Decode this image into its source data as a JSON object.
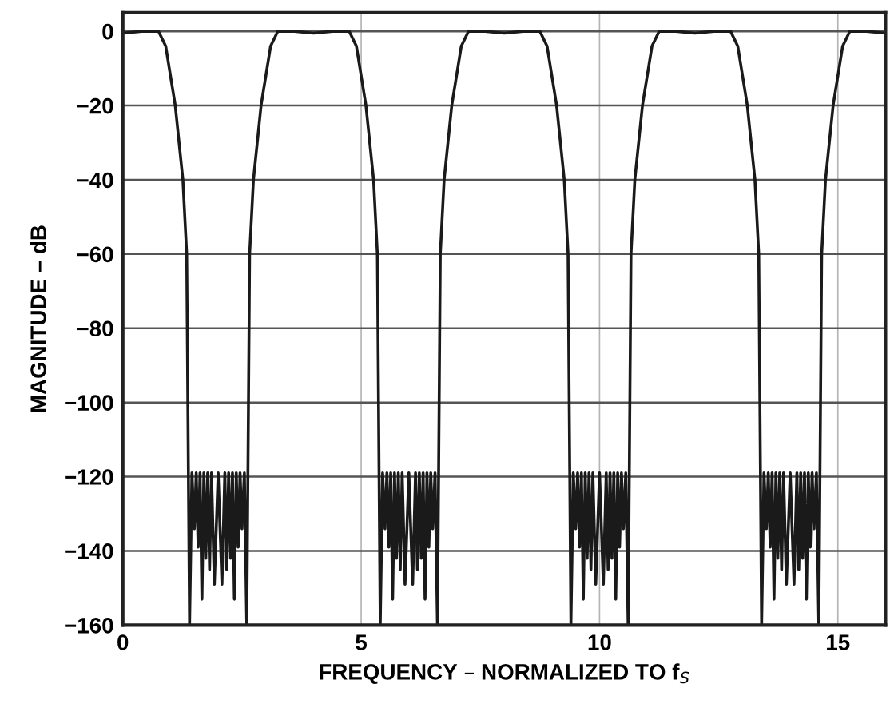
{
  "chart_data": {
    "type": "line",
    "xlabel": "FREQUENCY – NORMALIZED TO f$_{S}$",
    "ylabel": "MAGNITUDE – dB",
    "xlim": [
      0,
      16
    ],
    "ylim": [
      -160,
      5
    ],
    "xticks": [
      0,
      5,
      10,
      15
    ],
    "yticks": [
      0,
      {
        "value": -20,
        "label": "−20"
      },
      {
        "value": -40,
        "label": "−40"
      },
      {
        "value": -60,
        "label": "−60"
      },
      {
        "value": -80,
        "label": "−80"
      },
      {
        "value": -100,
        "label": "−100"
      },
      {
        "value": -120,
        "label": "−120"
      },
      {
        "value": -140,
        "label": "−140"
      },
      {
        "value": -160,
        "label": "−160"
      }
    ],
    "grid": true,
    "marker": "none",
    "line_style": "solid",
    "series": [
      {
        "color": "#1a1a1a",
        "x": [
          0,
          0.4,
          0.75,
          0.9,
          1.1,
          1.26,
          1.34,
          1.4,
          1.45,
          1.5,
          1.54,
          1.58,
          1.62,
          1.66,
          1.7,
          1.74,
          1.78,
          1.82,
          1.86,
          1.92,
          2,
          2.08,
          2.14,
          2.18,
          2.22,
          2.26,
          2.3,
          2.34,
          2.38,
          2.42,
          2.46,
          2.5,
          2.55,
          2.6,
          2.66,
          2.74,
          2.9,
          3.1,
          3.25,
          3.6,
          4,
          4.4,
          4.75,
          4.9,
          5.1,
          5.26,
          5.34,
          5.4,
          5.45,
          5.5,
          5.54,
          5.58,
          5.62,
          5.66,
          5.7,
          5.74,
          5.78,
          5.82,
          5.86,
          5.92,
          6,
          6.08,
          6.14,
          6.18,
          6.22,
          6.26,
          6.3,
          6.34,
          6.38,
          6.42,
          6.46,
          6.5,
          6.55,
          6.6,
          6.66,
          6.74,
          6.9,
          7.1,
          7.25,
          7.6,
          8,
          8.4,
          8.75,
          8.9,
          9.1,
          9.26,
          9.34,
          9.4,
          9.45,
          9.5,
          9.54,
          9.58,
          9.62,
          9.66,
          9.7,
          9.74,
          9.78,
          9.82,
          9.86,
          9.92,
          10,
          10.08,
          10.14,
          10.18,
          10.22,
          10.26,
          10.3,
          10.34,
          10.38,
          10.42,
          10.46,
          10.5,
          10.55,
          10.6,
          10.66,
          10.74,
          10.9,
          11.1,
          11.25,
          11.6,
          12,
          12.4,
          12.75,
          12.9,
          13.1,
          13.26,
          13.34,
          13.4,
          13.45,
          13.5,
          13.54,
          13.58,
          13.62,
          13.66,
          13.7,
          13.74,
          13.78,
          13.82,
          13.86,
          13.92,
          14,
          14.08,
          14.14,
          14.18,
          14.22,
          14.26,
          14.3,
          14.34,
          14.38,
          14.42,
          14.46,
          14.5,
          14.55,
          14.6,
          14.66,
          14.74,
          14.9,
          15.1,
          15.25,
          15.6,
          16
        ],
        "values": [
          -0.5,
          0,
          0,
          -4,
          -20,
          -40,
          -60,
          -160,
          -119,
          -134,
          -119,
          -139,
          -119,
          -153,
          -119,
          -142,
          -119,
          -145,
          -119,
          -149,
          -119,
          -149,
          -119,
          -145,
          -119,
          -142,
          -119,
          -153,
          -119,
          -139,
          -119,
          -134,
          -119,
          -160,
          -60,
          -40,
          -20,
          -4,
          0,
          0,
          -0.5,
          0,
          0,
          -4,
          -20,
          -40,
          -60,
          -160,
          -119,
          -134,
          -119,
          -139,
          -119,
          -153,
          -119,
          -142,
          -119,
          -145,
          -119,
          -149,
          -119,
          -149,
          -119,
          -145,
          -119,
          -142,
          -119,
          -153,
          -119,
          -139,
          -119,
          -134,
          -119,
          -160,
          -60,
          -40,
          -20,
          -4,
          0,
          0,
          -0.5,
          0,
          0,
          -4,
          -20,
          -40,
          -60,
          -160,
          -119,
          -134,
          -119,
          -139,
          -119,
          -153,
          -119,
          -142,
          -119,
          -145,
          -119,
          -149,
          -119,
          -149,
          -119,
          -145,
          -119,
          -142,
          -119,
          -153,
          -119,
          -139,
          -119,
          -134,
          -119,
          -160,
          -60,
          -40,
          -20,
          -4,
          0,
          0,
          -0.5,
          0,
          0,
          -4,
          -20,
          -40,
          -60,
          -160,
          -119,
          -134,
          -119,
          -139,
          -119,
          -153,
          -119,
          -142,
          -119,
          -145,
          -119,
          -149,
          -119,
          -149,
          -119,
          -145,
          -119,
          -142,
          -119,
          -153,
          -119,
          -139,
          -119,
          -134,
          -119,
          -160,
          -60,
          -40,
          -20,
          -4,
          0,
          0,
          -0.5
        ]
      }
    ]
  }
}
